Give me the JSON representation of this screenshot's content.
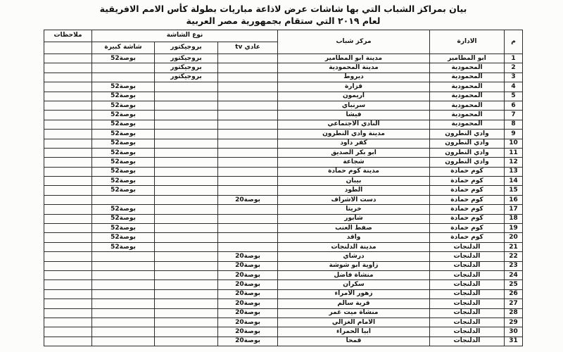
{
  "document": {
    "title_line1": "بيان بمراكز الشباب التي بها شاشات عرض لاذاعة مباريات بطولة كأس الامم الافريقية",
    "title_line2": "لعام ٢٠١٩ التي ستقام بجمهورية مصر العربية"
  },
  "table": {
    "headers": {
      "num": "م",
      "admin": "الادارة",
      "center": "مركز شباب",
      "screen_type": "نوع الشاشة",
      "tv": "عادي tv",
      "projector": "بروجيكتور",
      "big": "شاشة كبيرة",
      "notes": "ملاحظات"
    },
    "rows": [
      {
        "num": "1",
        "admin": "ابو المطامير",
        "center": "مدينة ابو المطامير",
        "tv": "",
        "projector": "بروجيكتور",
        "big": "52بوصة",
        "notes": ""
      },
      {
        "num": "2",
        "admin": "المحمودية",
        "center": "مدينة المحمودية",
        "tv": "",
        "projector": "بروجيكتور",
        "big": "",
        "notes": ""
      },
      {
        "num": "3",
        "admin": "المحمودية",
        "center": "ديروط",
        "tv": "",
        "projector": "بروجيكتور",
        "big": "",
        "notes": ""
      },
      {
        "num": "4",
        "admin": "المحمودية",
        "center": "قزارة",
        "tv": "",
        "projector": "",
        "big": "52بوصة",
        "notes": ""
      },
      {
        "num": "5",
        "admin": "المحمودية",
        "center": "اريمون",
        "tv": "",
        "projector": "",
        "big": "52بوصة",
        "notes": ""
      },
      {
        "num": "6",
        "admin": "المحمودية",
        "center": "سرنباي",
        "tv": "",
        "projector": "",
        "big": "52بوصة",
        "notes": ""
      },
      {
        "num": "7",
        "admin": "المحمودية",
        "center": "فيشا",
        "tv": "",
        "projector": "",
        "big": "52بوصة",
        "notes": ""
      },
      {
        "num": "8",
        "admin": "المحمودية",
        "center": "النادي الاجتماعي",
        "tv": "",
        "projector": "",
        "big": "52بوصة",
        "notes": ""
      },
      {
        "num": "9",
        "admin": "وادي النطرون",
        "center": "مدينة وادي النطرون",
        "tv": "",
        "projector": "",
        "big": "52بوصة",
        "notes": ""
      },
      {
        "num": "10",
        "admin": "وادي النطرون",
        "center": "كفر داود",
        "tv": "",
        "projector": "",
        "big": "52بوصة",
        "notes": ""
      },
      {
        "num": "11",
        "admin": "وادي النطرون",
        "center": "ابو بكر الصديق",
        "tv": "",
        "projector": "",
        "big": "52بوصة",
        "notes": ""
      },
      {
        "num": "12",
        "admin": "وادي النطرون",
        "center": "شجاعة",
        "tv": "",
        "projector": "",
        "big": "52بوصة",
        "notes": ""
      },
      {
        "num": "13",
        "admin": "كوم حمادة",
        "center": "مدينة كوم حمادة",
        "tv": "",
        "projector": "",
        "big": "52بوصة",
        "notes": ""
      },
      {
        "num": "14",
        "admin": "كوم حمادة",
        "center": "بيبان",
        "tv": "",
        "projector": "",
        "big": "52بوصة",
        "notes": ""
      },
      {
        "num": "15",
        "admin": "كوم حمادة",
        "center": "الطود",
        "tv": "",
        "projector": "",
        "big": "52بوصة",
        "notes": ""
      },
      {
        "num": "16",
        "admin": "كوم حمادة",
        "center": "دست الاشراف",
        "tv": "20بوصة",
        "projector": "",
        "big": "",
        "notes": ""
      },
      {
        "num": "17",
        "admin": "كوم حمادة",
        "center": "خريتا",
        "tv": "",
        "projector": "",
        "big": "52بوصة",
        "notes": ""
      },
      {
        "num": "18",
        "admin": "كوم حمادة",
        "center": "شابور",
        "tv": "",
        "projector": "",
        "big": "52بوصة",
        "notes": ""
      },
      {
        "num": "19",
        "admin": "كوم حمادة",
        "center": "صفط العنب",
        "tv": "",
        "projector": "",
        "big": "52بوصة",
        "notes": ""
      },
      {
        "num": "20",
        "admin": "كوم حمادة",
        "center": "واقد",
        "tv": "",
        "projector": "",
        "big": "52بوصة",
        "notes": ""
      },
      {
        "num": "21",
        "admin": "الدلنجات",
        "center": "مدينة الدلنجات",
        "tv": "",
        "projector": "",
        "big": "52بوصة",
        "notes": ""
      },
      {
        "num": "22",
        "admin": "الدلنجات",
        "center": "درشاي",
        "tv": "20بوصة",
        "projector": "",
        "big": "",
        "notes": ""
      },
      {
        "num": "23",
        "admin": "الدلنجات",
        "center": "زاوية ابو شوشة",
        "tv": "20بوصة",
        "projector": "",
        "big": "",
        "notes": ""
      },
      {
        "num": "24",
        "admin": "الدلنجات",
        "center": "منشاة فاضل",
        "tv": "20بوصة",
        "projector": "",
        "big": "",
        "notes": ""
      },
      {
        "num": "25",
        "admin": "الدلنجات",
        "center": "سكران",
        "tv": "20بوصة",
        "projector": "",
        "big": "",
        "notes": ""
      },
      {
        "num": "26",
        "admin": "الدلنجات",
        "center": "زهور الامراء",
        "tv": "20بوصة",
        "projector": "",
        "big": "",
        "notes": ""
      },
      {
        "num": "27",
        "admin": "الدلنجات",
        "center": "قرية سالم",
        "tv": "20بوصة",
        "projector": "",
        "big": "",
        "notes": ""
      },
      {
        "num": "28",
        "admin": "الدلنجات",
        "center": "منشاة ميت غمر",
        "tv": "20بوصة",
        "projector": "",
        "big": "",
        "notes": ""
      },
      {
        "num": "29",
        "admin": "الدلنجات",
        "center": "الامام الغزالي",
        "tv": "20بوصة",
        "projector": "",
        "big": "",
        "notes": ""
      },
      {
        "num": "30",
        "admin": "الدلنجات",
        "center": "ابيا الحمراء",
        "tv": "20بوصة",
        "projector": "",
        "big": "",
        "notes": ""
      },
      {
        "num": "31",
        "admin": "الدلنجات",
        "center": "قمحا",
        "tv": "20بوصة",
        "projector": "",
        "big": "",
        "notes": ""
      }
    ]
  }
}
